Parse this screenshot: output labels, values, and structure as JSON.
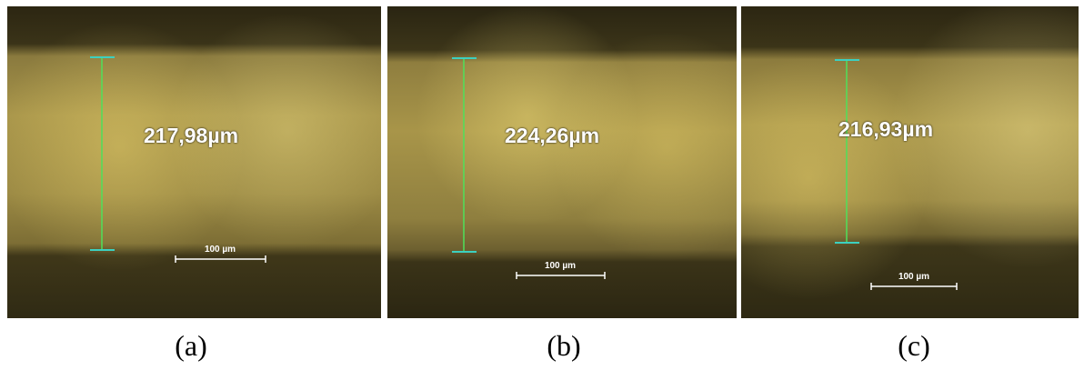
{
  "panels": [
    {
      "measurement": "217,98µm",
      "scale_bar": "100 µm",
      "caption": "(a)"
    },
    {
      "measurement": "224,26µm",
      "scale_bar": "100 µm",
      "caption": "(b)"
    },
    {
      "measurement": "216,93µm",
      "scale_bar": "100 µm",
      "caption": "(c)"
    }
  ]
}
